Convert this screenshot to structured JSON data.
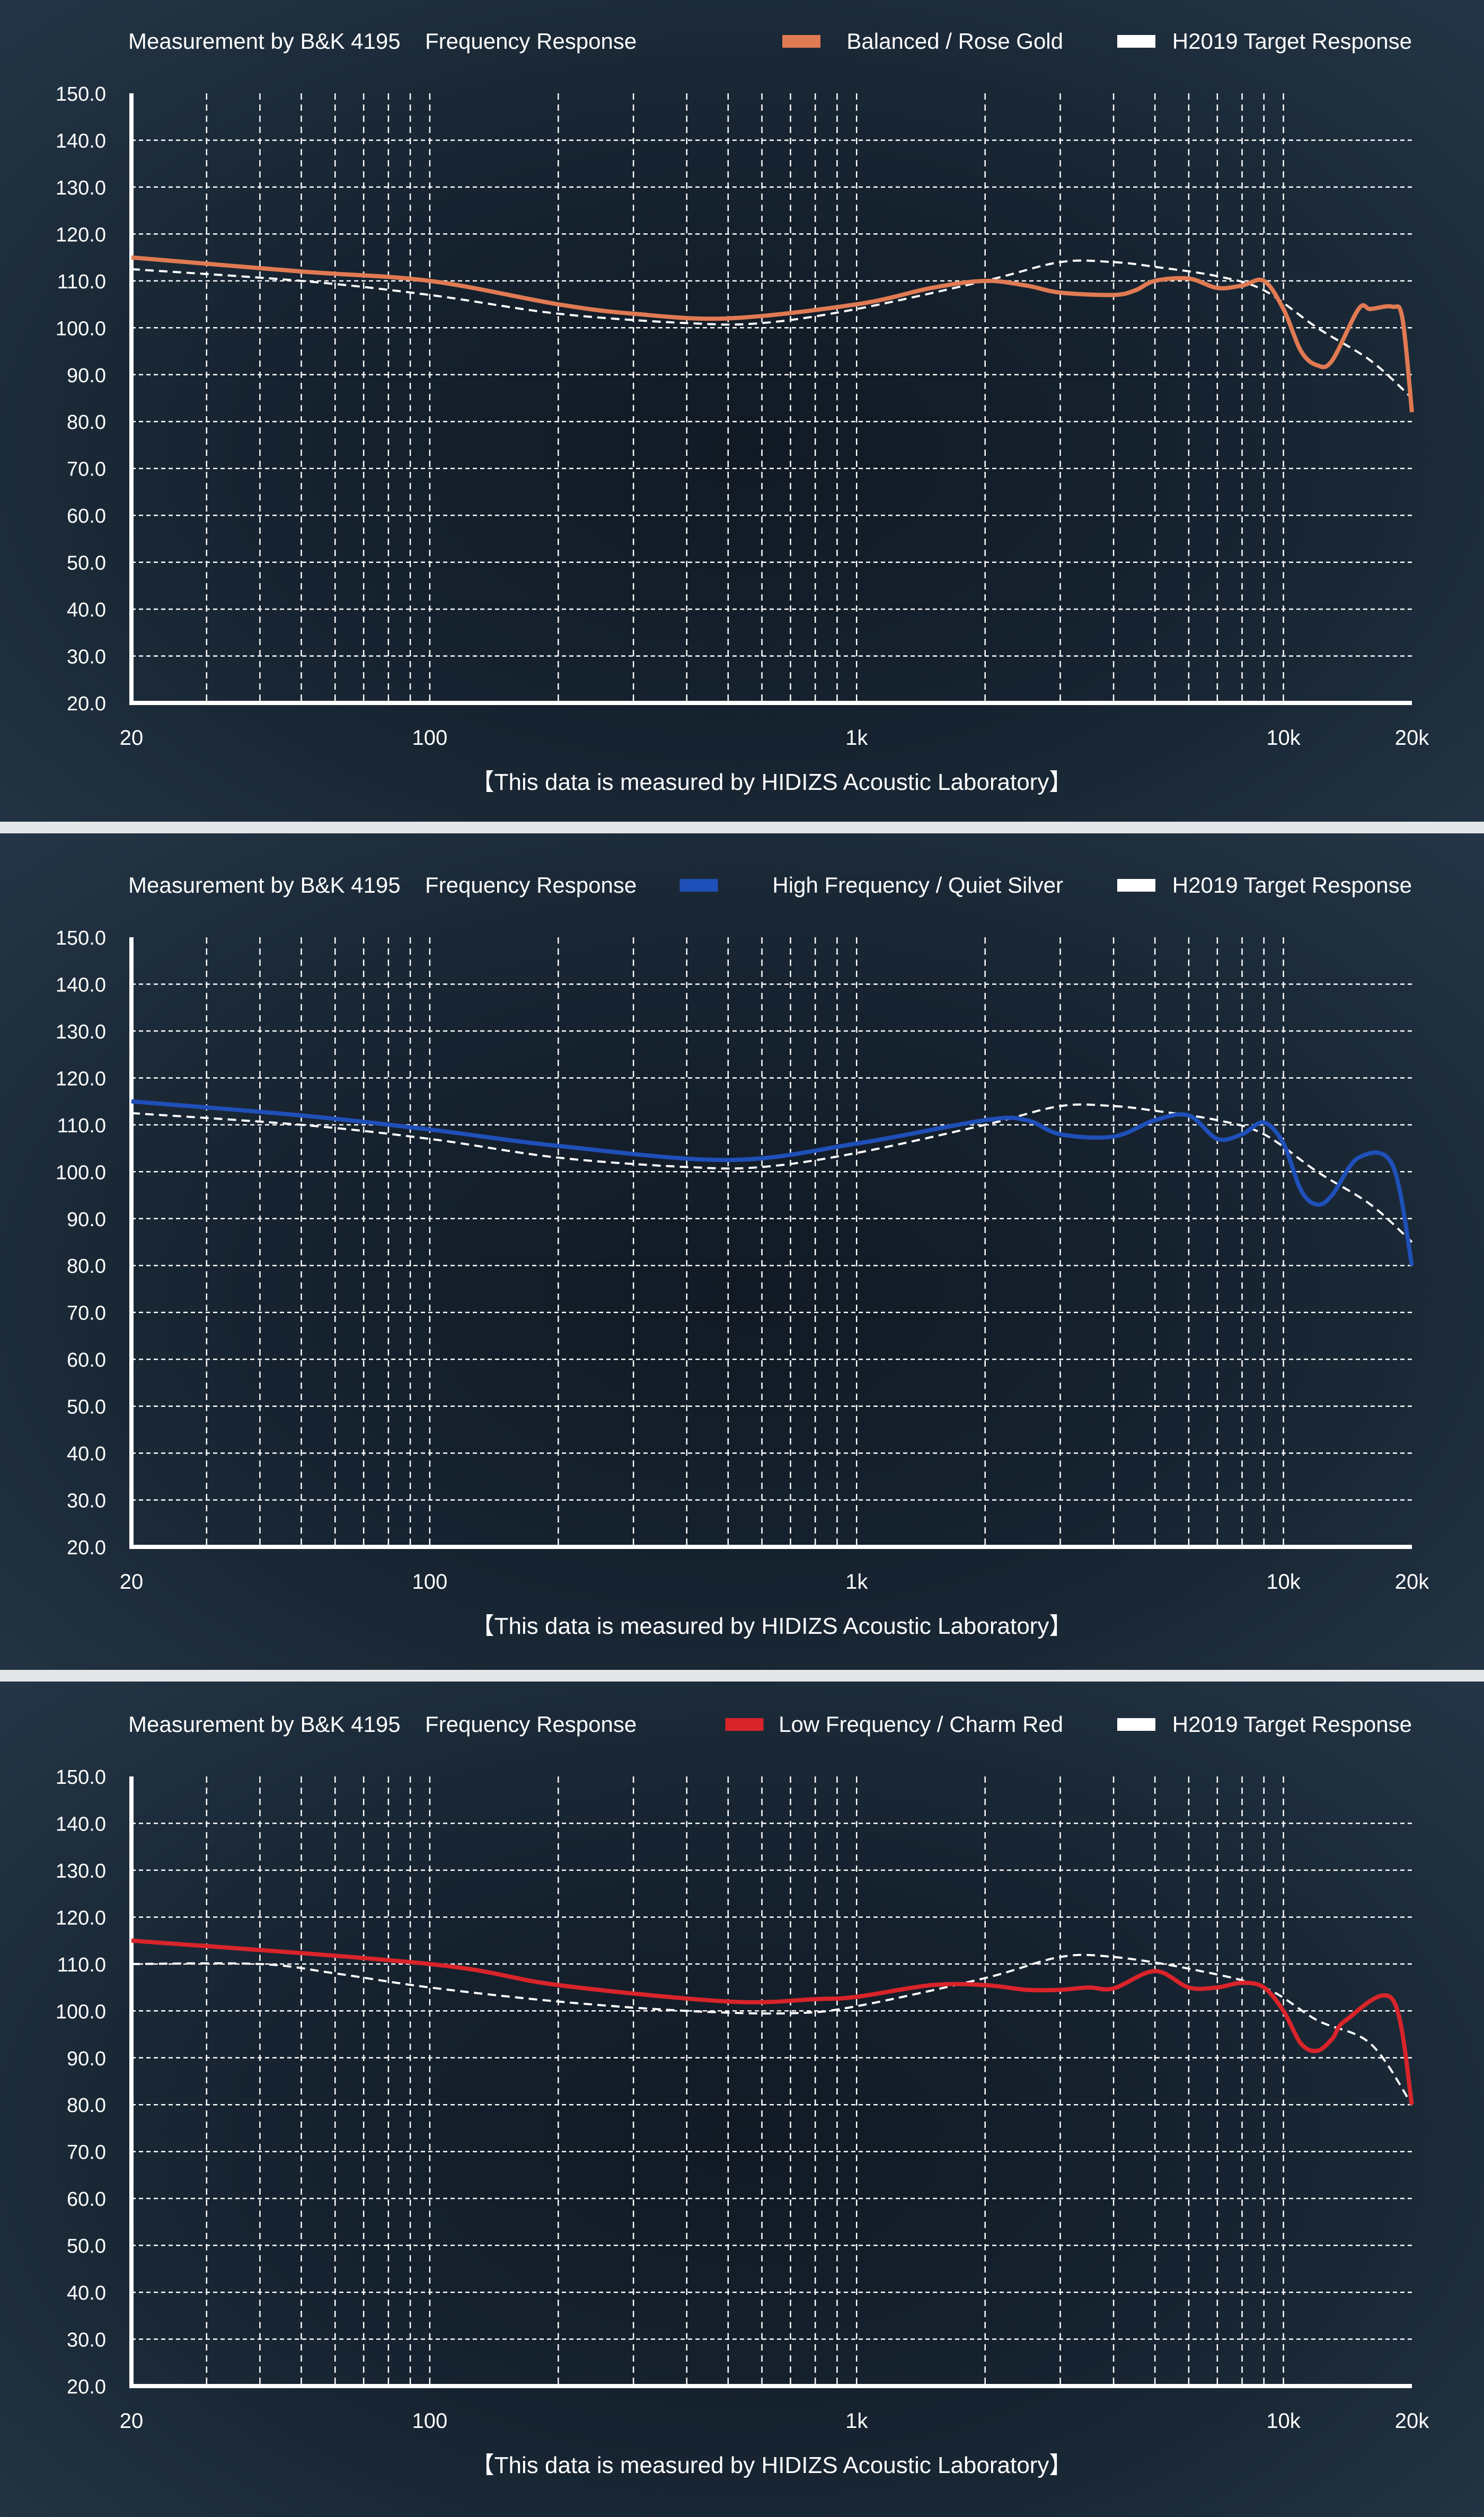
{
  "colors": {
    "balanced": "#e07a52",
    "silver": "#1f4fb8",
    "red": "#d8242a",
    "target": "#ffffff"
  },
  "chart_data": [
    {
      "type": "line",
      "title": "Measurement by B&K 4195",
      "subtitle": "Frequency Response",
      "xscale": "log",
      "xlim": [
        20,
        20000
      ],
      "ylim": [
        20,
        150
      ],
      "grid": true,
      "legend": "top-right",
      "yticks": [
        "150.0",
        "140.0",
        "130.0",
        "120.0",
        "110.0",
        "100.0",
        "90.0",
        "80.0",
        "70.0",
        "60.0",
        "50.0",
        "40.0",
        "30.0",
        "20.0"
      ],
      "xticks": [
        "20",
        "100",
        "1k",
        "10k",
        "20k"
      ],
      "footer": "【This data is measured by HIDIZS Acoustic Laboratory】",
      "series": [
        {
          "name": "Balanced / Rose Gold",
          "color": "#e07a52",
          "style": "solid",
          "x": [
            20,
            50,
            100,
            200,
            300,
            500,
            1000,
            1500,
            2000,
            2500,
            3000,
            4000,
            4500,
            5000,
            6000,
            7000,
            8000,
            9000,
            10000,
            11000,
            12000,
            13000,
            15000,
            16000,
            18000,
            19000,
            20000
          ],
          "y": [
            115,
            112,
            110,
            105,
            103,
            102,
            105,
            108.5,
            110,
            109,
            107.5,
            107,
            108,
            110,
            110.5,
            108.5,
            109,
            110,
            104,
            95,
            92,
            93,
            104,
            104,
            104.5,
            102,
            82
          ]
        },
        {
          "name": "H2019 Target Response",
          "color": "#ffffff",
          "style": "dashed",
          "x": [
            20,
            50,
            100,
            200,
            400,
            600,
            1000,
            2000,
            3000,
            4000,
            5000,
            7000,
            9000,
            12000,
            16000,
            20000
          ],
          "y": [
            112.5,
            110,
            107,
            103,
            101,
            101,
            104,
            110,
            114,
            114,
            113,
            111,
            108,
            100,
            93,
            85
          ]
        }
      ]
    },
    {
      "type": "line",
      "title": "Measurement by B&K 4195",
      "subtitle": "Frequency Response",
      "xscale": "log",
      "xlim": [
        20,
        20000
      ],
      "ylim": [
        20,
        150
      ],
      "grid": true,
      "legend": "top-right",
      "yticks": [
        "150.0",
        "140.0",
        "130.0",
        "120.0",
        "110.0",
        "100.0",
        "90.0",
        "80.0",
        "70.0",
        "60.0",
        "50.0",
        "40.0",
        "30.0",
        "20.0"
      ],
      "xticks": [
        "20",
        "100",
        "1k",
        "10k",
        "20k"
      ],
      "footer": "【This data is measured by HIDIZS Acoustic Laboratory】",
      "series": [
        {
          "name": "High Frequency / Quiet Silver",
          "color": "#1f4fb8",
          "style": "solid",
          "x": [
            20,
            50,
            100,
            200,
            500,
            1000,
            2000,
            2500,
            3000,
            4000,
            5000,
            6000,
            7000,
            8000,
            9000,
            10000,
            11000,
            12000,
            13000,
            15000,
            18000,
            20000
          ],
          "y": [
            115,
            112,
            109,
            105.5,
            102.5,
            106,
            111,
            111,
            108,
            107.5,
            111,
            112,
            107,
            108,
            110.5,
            106,
            96,
            93,
            95,
            103,
            101.5,
            80
          ]
        },
        {
          "name": "H2019 Target Response",
          "color": "#ffffff",
          "style": "dashed",
          "x": [
            20,
            50,
            100,
            200,
            400,
            600,
            1000,
            2000,
            3000,
            4000,
            5000,
            7000,
            9000,
            12000,
            16000,
            20000
          ],
          "y": [
            112.5,
            110,
            107,
            103,
            101,
            101,
            104,
            110,
            114,
            114,
            113,
            111,
            108,
            100,
            93,
            85
          ]
        }
      ]
    },
    {
      "type": "line",
      "title": "Measurement by B&K 4195",
      "subtitle": "Frequency Response",
      "xscale": "log",
      "xlim": [
        20,
        20000
      ],
      "ylim": [
        20,
        150
      ],
      "grid": true,
      "legend": "top-right",
      "yticks": [
        "150.0",
        "140.0",
        "130.0",
        "120.0",
        "110.0",
        "100.0",
        "90.0",
        "80.0",
        "70.0",
        "60.0",
        "50.0",
        "40.0",
        "30.0",
        "20.0"
      ],
      "xticks": [
        "20",
        "100",
        "1k",
        "10k",
        "20k"
      ],
      "footer": "【This data is measured by HIDIZS Acoustic Laboratory】",
      "series": [
        {
          "name": "Low Frequency / Charm Red",
          "color": "#d8242a",
          "style": "solid",
          "x": [
            20,
            100,
            200,
            500,
            800,
            1000,
            1500,
            2000,
            2500,
            3000,
            3500,
            4000,
            5000,
            6000,
            7000,
            8000,
            9000,
            10000,
            11000,
            12000,
            13000,
            14000,
            18000,
            20000
          ],
          "y": [
            115,
            110,
            105.5,
            102,
            102.5,
            103,
            105.5,
            105.5,
            104.5,
            104.5,
            105,
            104.8,
            108.5,
            105,
            105,
            106,
            105,
            100,
            93,
            91.5,
            94,
            98,
            102.5,
            80
          ]
        },
        {
          "name": "H2019 Target Response",
          "color": "#ffffff",
          "style": "dashed",
          "x": [
            20,
            40,
            60,
            100,
            200,
            400,
            700,
            1000,
            2000,
            3000,
            4000,
            6000,
            9000,
            12000,
            16000,
            20000
          ],
          "y": [
            110,
            110,
            108,
            105,
            102,
            100,
            99.5,
            101,
            107,
            111.5,
            111.5,
            109,
            105,
            98,
            93,
            80
          ]
        }
      ]
    }
  ]
}
